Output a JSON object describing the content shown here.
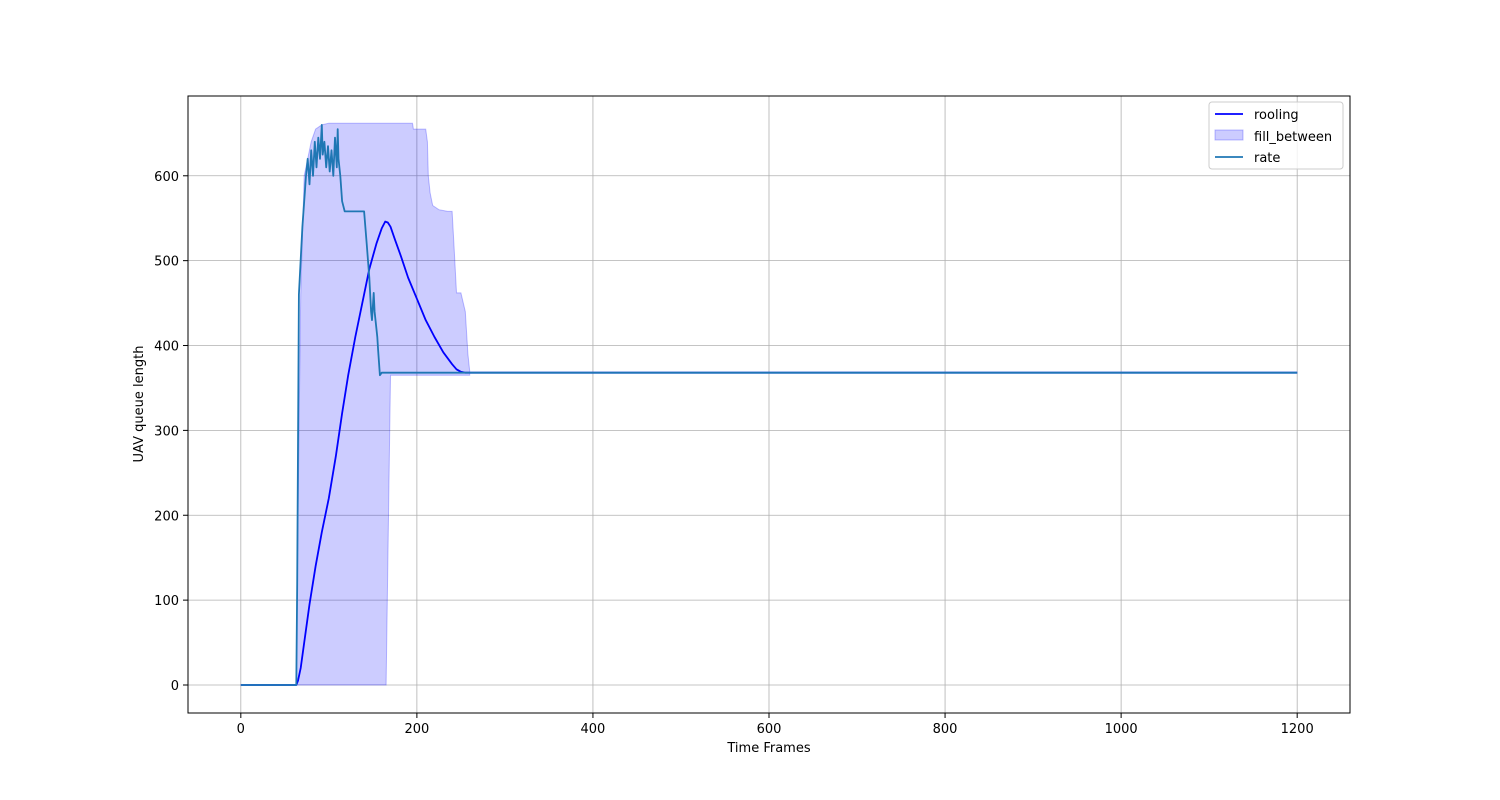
{
  "chart_data": {
    "type": "line",
    "title": "",
    "xlabel": "Time Frames",
    "ylabel": "UAV queue length",
    "xlim": [
      -60,
      1260
    ],
    "ylim": [
      -33,
      694
    ],
    "xticks": [
      0,
      200,
      400,
      600,
      800,
      1000,
      1200
    ],
    "yticks": [
      0,
      100,
      200,
      300,
      400,
      500,
      600
    ],
    "grid": true,
    "legend_position": "top-right",
    "legend": [
      "rooling",
      "fill_between",
      "rate"
    ],
    "colors": {
      "rooling": "#0000ff",
      "fill_between": "#0000ff",
      "rate": "#1f77b4"
    },
    "series": [
      {
        "name": "rooling",
        "style": "line",
        "x": [
          0,
          63,
          65,
          68,
          72,
          78,
          85,
          92,
          100,
          108,
          115,
          122,
          130,
          138,
          146,
          154,
          160,
          164,
          167,
          170,
          175,
          182,
          190,
          200,
          210,
          220,
          230,
          240,
          245,
          250,
          255,
          260,
          1200
        ],
        "y": [
          0,
          0,
          5,
          20,
          50,
          95,
          140,
          180,
          220,
          270,
          320,
          365,
          410,
          450,
          490,
          520,
          538,
          546,
          545,
          540,
          525,
          505,
          480,
          455,
          430,
          410,
          392,
          378,
          372,
          369,
          368,
          368,
          368
        ]
      },
      {
        "name": "fill_between",
        "style": "band",
        "x": [
          63,
          65,
          68,
          72,
          76,
          80,
          85,
          92,
          100,
          110,
          120,
          130,
          140,
          150,
          155,
          160,
          162,
          165,
          170,
          180,
          190,
          195,
          196,
          205,
          210,
          212,
          213,
          215,
          217,
          218,
          225,
          235,
          240,
          242,
          245,
          250,
          255,
          258,
          260
        ],
        "upper": [
          0,
          200,
          460,
          600,
          620,
          640,
          655,
          660,
          662,
          662,
          662,
          662,
          662,
          662,
          662,
          662,
          662,
          662,
          662,
          662,
          662,
          662,
          655,
          655,
          655,
          640,
          600,
          580,
          570,
          565,
          560,
          558,
          558,
          520,
          462,
          462,
          440,
          390,
          370
        ],
        "lower": [
          0,
          0,
          0,
          0,
          0,
          0,
          0,
          0,
          0,
          0,
          0,
          0,
          0,
          0,
          0,
          0,
          0,
          0,
          365,
          365,
          365,
          365,
          365,
          365,
          365,
          365,
          365,
          365,
          365,
          365,
          365,
          365,
          365,
          365,
          365,
          365,
          365,
          365,
          365
        ]
      },
      {
        "name": "rate",
        "style": "line",
        "x": [
          0,
          63,
          64,
          66,
          70,
          74,
          76,
          78,
          80,
          82,
          84,
          86,
          88,
          90,
          92,
          93,
          95,
          97,
          99,
          101,
          103,
          105,
          107,
          109,
          110,
          111,
          113,
          115,
          118,
          140,
          143,
          146,
          148,
          149,
          151,
          152,
          153,
          154,
          155,
          156,
          157,
          158,
          160,
          1200
        ],
        "y": [
          0,
          0,
          120,
          460,
          540,
          600,
          620,
          590,
          630,
          600,
          640,
          610,
          645,
          620,
          660,
          625,
          640,
          610,
          635,
          605,
          630,
          600,
          645,
          610,
          655,
          620,
          600,
          570,
          558,
          558,
          520,
          480,
          440,
          430,
          462,
          440,
          430,
          420,
          410,
          395,
          380,
          365,
          368,
          368
        ]
      }
    ]
  }
}
